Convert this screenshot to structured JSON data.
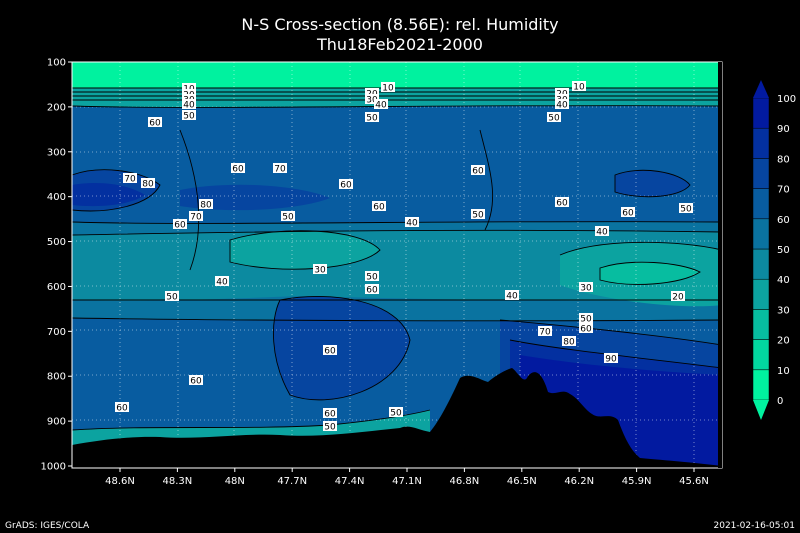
{
  "chart_data": {
    "type": "contour",
    "title": "N-S Cross-section (8.56E): rel. Humidity",
    "subtitle": "Thu18Feb2021-2000",
    "x_tick_labels": [
      "48.6N",
      "48.3N",
      "48N",
      "47.7N",
      "47.4N",
      "47.1N",
      "46.8N",
      "46.5N",
      "46.2N",
      "45.9N",
      "45.6N"
    ],
    "y_tick_labels": [
      "100",
      "200",
      "300",
      "400",
      "500",
      "600",
      "700",
      "800",
      "900",
      "1000"
    ],
    "y_axis_inverted": true,
    "grid": true,
    "colorbar": {
      "labels": [
        "0",
        "10",
        "20",
        "30",
        "40",
        "50",
        "60",
        "70",
        "80",
        "90",
        "100"
      ],
      "colors": [
        "#00f29f",
        "#02d7a0",
        "#07bda0",
        "#0ca3a0",
        "#0c8aa0",
        "#0a73a0",
        "#085ca0",
        "#0645a0",
        "#0330a0",
        "#021aa0"
      ]
    },
    "contour_labels": [
      {
        "text": "10"
      },
      {
        "text": "20"
      },
      {
        "text": "30"
      },
      {
        "text": "40"
      },
      {
        "text": "50"
      },
      {
        "text": "10"
      },
      {
        "text": "20"
      },
      {
        "text": "30"
      },
      {
        "text": "40"
      },
      {
        "text": "50"
      },
      {
        "text": "10"
      },
      {
        "text": "20"
      },
      {
        "text": "30"
      },
      {
        "text": "40"
      },
      {
        "text": "50"
      },
      {
        "text": "60"
      },
      {
        "text": "60"
      },
      {
        "text": "70"
      },
      {
        "text": "70"
      },
      {
        "text": "80"
      },
      {
        "text": "60"
      },
      {
        "text": "60"
      },
      {
        "text": "60"
      },
      {
        "text": "60"
      },
      {
        "text": "60"
      },
      {
        "text": "80"
      },
      {
        "text": "70"
      },
      {
        "text": "60"
      },
      {
        "text": "50"
      },
      {
        "text": "40"
      },
      {
        "text": "50"
      },
      {
        "text": "40"
      },
      {
        "text": "50"
      },
      {
        "text": "30"
      },
      {
        "text": "50"
      },
      {
        "text": "60"
      },
      {
        "text": "40"
      },
      {
        "text": "30"
      },
      {
        "text": "20"
      },
      {
        "text": "50"
      },
      {
        "text": "50"
      },
      {
        "text": "60"
      },
      {
        "text": "70"
      },
      {
        "text": "80"
      },
      {
        "text": "90"
      },
      {
        "text": "60"
      },
      {
        "text": "60"
      },
      {
        "text": "60"
      },
      {
        "text": "60"
      },
      {
        "text": "50"
      },
      {
        "text": "40"
      },
      {
        "text": "50"
      }
    ]
  },
  "footer": {
    "left": "GrADS: IGES/COLA",
    "right": "2021-02-16-05:01"
  }
}
